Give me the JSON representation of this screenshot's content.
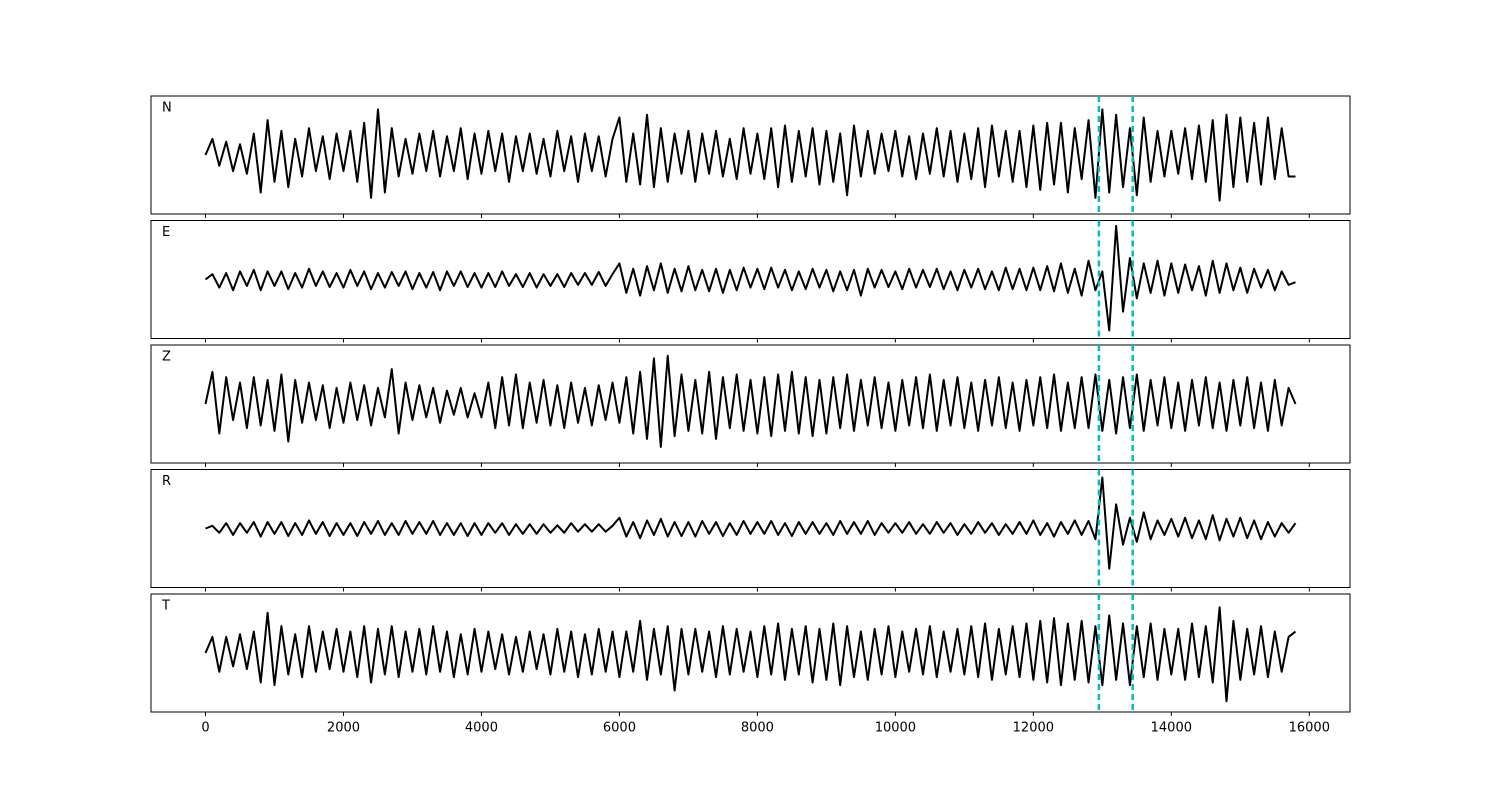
{
  "chart_data": {
    "type": "line",
    "x": [
      0,
      100,
      200,
      300,
      400,
      500,
      600,
      700,
      800,
      900,
      1000,
      1100,
      1200,
      1300,
      1400,
      1500,
      1600,
      1700,
      1800,
      1900,
      2000,
      2100,
      2200,
      2300,
      2400,
      2500,
      2600,
      2700,
      2800,
      2900,
      3000,
      3100,
      3200,
      3300,
      3400,
      3500,
      3600,
      3700,
      3800,
      3900,
      4000,
      4100,
      4200,
      4300,
      4400,
      4500,
      4600,
      4700,
      4800,
      4900,
      5000,
      5100,
      5200,
      5300,
      5400,
      5500,
      5600,
      5700,
      5800,
      5900,
      6000,
      6100,
      6200,
      6300,
      6400,
      6500,
      6600,
      6700,
      6800,
      6900,
      7000,
      7100,
      7200,
      7300,
      7400,
      7500,
      7600,
      7700,
      7800,
      7900,
      8000,
      8100,
      8200,
      8300,
      8400,
      8500,
      8600,
      8700,
      8800,
      8900,
      9000,
      9100,
      9200,
      9300,
      9400,
      9500,
      9600,
      9700,
      9800,
      9900,
      10000,
      10100,
      10200,
      10300,
      10400,
      10500,
      10600,
      10700,
      10800,
      10900,
      11000,
      11100,
      11200,
      11300,
      11400,
      11500,
      11600,
      11700,
      11800,
      11900,
      12000,
      12100,
      12200,
      12300,
      12400,
      12500,
      12600,
      12700,
      12800,
      12900,
      13000,
      13100,
      13200,
      13300,
      13400,
      13500,
      13600,
      13700,
      13800,
      13900,
      14000,
      14100,
      14200,
      14300,
      14400,
      14500,
      14600,
      14700,
      14800,
      14900,
      15000,
      15100,
      15200,
      15300,
      15400,
      15500,
      15600,
      15700,
      15800
    ],
    "series": [
      {
        "name": "N",
        "color": "#000000",
        "values": [
          0.0,
          0.3,
          -0.2,
          0.25,
          -0.3,
          0.2,
          -0.35,
          0.4,
          -0.7,
          0.65,
          -0.5,
          0.45,
          -0.6,
          0.3,
          -0.4,
          0.5,
          -0.3,
          0.35,
          -0.45,
          0.4,
          -0.3,
          0.45,
          -0.5,
          0.6,
          -0.8,
          0.85,
          -0.7,
          0.5,
          -0.4,
          0.3,
          -0.35,
          0.4,
          -0.3,
          0.45,
          -0.4,
          0.35,
          -0.3,
          0.5,
          -0.45,
          0.4,
          -0.35,
          0.45,
          -0.3,
          0.4,
          -0.5,
          0.35,
          -0.3,
          0.4,
          -0.35,
          0.3,
          -0.4,
          0.45,
          -0.3,
          0.35,
          -0.5,
          0.4,
          -0.3,
          0.35,
          -0.4,
          0.3,
          0.7,
          -0.5,
          0.4,
          -0.55,
          0.75,
          -0.6,
          0.5,
          -0.5,
          0.4,
          -0.35,
          0.45,
          -0.5,
          0.4,
          -0.35,
          0.45,
          -0.4,
          0.3,
          -0.45,
          0.5,
          -0.35,
          0.4,
          -0.45,
          0.5,
          -0.6,
          0.55,
          -0.5,
          0.45,
          -0.4,
          0.5,
          -0.55,
          0.45,
          -0.5,
          0.4,
          -0.75,
          0.55,
          -0.4,
          0.45,
          -0.35,
          0.4,
          -0.3,
          0.45,
          -0.4,
          0.35,
          -0.45,
          0.4,
          -0.35,
          0.5,
          -0.4,
          0.45,
          -0.5,
          0.4,
          -0.45,
          0.5,
          -0.6,
          0.55,
          -0.4,
          0.45,
          -0.5,
          0.45,
          -0.6,
          0.55,
          -0.65,
          0.6,
          -0.55,
          0.6,
          -0.7,
          0.5,
          -0.45,
          0.65,
          -0.8,
          0.85,
          -0.7,
          0.75,
          -0.6,
          0.5,
          -0.75,
          0.7,
          -0.5,
          0.45,
          -0.4,
          0.45,
          -0.35,
          0.5,
          -0.45,
          0.55,
          -0.5,
          0.65,
          -0.85,
          0.75,
          -0.6,
          0.7,
          -0.5,
          0.6,
          -0.55,
          0.7,
          -0.45,
          0.5,
          -0.4,
          -0.4
        ]
      },
      {
        "name": "E",
        "color": "#000000",
        "values": [
          0.0,
          0.1,
          -0.15,
          0.12,
          -0.2,
          0.15,
          -0.12,
          0.18,
          -0.2,
          0.15,
          -0.12,
          0.15,
          -0.18,
          0.12,
          -0.15,
          0.2,
          -0.12,
          0.15,
          -0.14,
          0.12,
          -0.15,
          0.18,
          -0.12,
          0.15,
          -0.18,
          0.12,
          -0.15,
          0.14,
          -0.12,
          0.15,
          -0.18,
          0.12,
          -0.15,
          0.14,
          -0.2,
          0.15,
          -0.12,
          0.15,
          -0.14,
          0.12,
          -0.15,
          0.12,
          -0.14,
          0.15,
          -0.12,
          0.1,
          -0.14,
          0.12,
          -0.15,
          0.1,
          -0.12,
          0.1,
          -0.14,
          0.12,
          -0.1,
          0.12,
          -0.1,
          0.14,
          -0.12,
          0.1,
          0.3,
          -0.25,
          0.2,
          -0.3,
          0.25,
          -0.2,
          0.3,
          -0.25,
          0.2,
          -0.22,
          0.25,
          -0.2,
          0.18,
          -0.22,
          0.2,
          -0.25,
          0.18,
          -0.2,
          0.22,
          -0.15,
          0.2,
          -0.18,
          0.22,
          -0.15,
          0.18,
          -0.2,
          0.15,
          -0.18,
          0.2,
          -0.15,
          0.18,
          -0.22,
          0.15,
          -0.2,
          0.18,
          -0.3,
          0.2,
          -0.15,
          0.18,
          -0.14,
          0.15,
          -0.18,
          0.2,
          -0.15,
          0.18,
          -0.14,
          0.2,
          -0.18,
          0.15,
          -0.2,
          0.18,
          -0.15,
          0.2,
          -0.18,
          0.15,
          -0.2,
          0.22,
          -0.18,
          0.2,
          -0.2,
          0.22,
          -0.2,
          0.25,
          -0.22,
          0.3,
          -0.25,
          0.2,
          -0.3,
          0.35,
          -0.2,
          0.15,
          -0.95,
          1.0,
          -0.6,
          0.4,
          -0.35,
          0.3,
          -0.25,
          0.35,
          -0.3,
          0.3,
          -0.25,
          0.28,
          -0.2,
          0.25,
          -0.3,
          0.35,
          -0.25,
          0.3,
          -0.2,
          0.22,
          -0.25,
          0.2,
          -0.15,
          0.18,
          -0.2,
          0.15,
          -0.1,
          -0.05
        ]
      },
      {
        "name": "Z",
        "color": "#000000",
        "values": [
          0.0,
          0.6,
          -0.55,
          0.5,
          -0.3,
          0.4,
          -0.45,
          0.5,
          -0.4,
          0.45,
          -0.5,
          0.55,
          -0.7,
          0.45,
          -0.35,
          0.4,
          -0.3,
          0.35,
          -0.45,
          0.3,
          -0.35,
          0.4,
          -0.3,
          0.35,
          -0.4,
          0.3,
          -0.25,
          0.65,
          -0.55,
          0.4,
          -0.3,
          0.35,
          -0.25,
          0.3,
          -0.35,
          0.25,
          -0.2,
          0.3,
          -0.25,
          0.2,
          -0.25,
          0.4,
          -0.45,
          0.5,
          -0.4,
          0.55,
          -0.45,
          0.4,
          -0.35,
          0.45,
          -0.4,
          0.35,
          -0.45,
          0.4,
          -0.35,
          0.3,
          -0.4,
          0.35,
          -0.3,
          0.4,
          -0.35,
          0.5,
          -0.55,
          0.6,
          -0.65,
          0.85,
          -0.8,
          0.9,
          -0.6,
          0.55,
          -0.5,
          0.45,
          -0.55,
          0.6,
          -0.65,
          0.5,
          -0.45,
          0.55,
          -0.5,
          0.45,
          -0.55,
          0.5,
          -0.6,
          0.55,
          -0.5,
          0.6,
          -0.55,
          0.5,
          -0.6,
          0.45,
          -0.55,
          0.5,
          -0.45,
          0.55,
          -0.5,
          0.45,
          -0.4,
          0.5,
          -0.45,
          0.4,
          -0.5,
          0.45,
          -0.4,
          0.5,
          -0.45,
          0.55,
          -0.5,
          0.45,
          -0.4,
          0.5,
          -0.45,
          0.4,
          -0.5,
          0.45,
          -0.4,
          0.5,
          -0.45,
          0.4,
          -0.5,
          0.45,
          -0.4,
          0.5,
          -0.45,
          0.55,
          -0.5,
          0.4,
          -0.45,
          0.5,
          -0.45,
          0.55,
          -0.5,
          0.45,
          -0.55,
          0.5,
          -0.45,
          0.55,
          -0.5,
          0.45,
          -0.4,
          0.5,
          -0.45,
          0.4,
          -0.5,
          0.45,
          -0.4,
          0.5,
          -0.45,
          0.4,
          -0.5,
          0.45,
          -0.4,
          0.5,
          -0.45,
          0.4,
          -0.5,
          0.45,
          -0.4,
          0.3,
          0.0
        ]
      },
      {
        "name": "R",
        "color": "#000000",
        "values": [
          0.0,
          0.05,
          -0.08,
          0.1,
          -0.12,
          0.1,
          -0.08,
          0.12,
          -0.15,
          0.12,
          -0.1,
          0.12,
          -0.14,
          0.1,
          -0.12,
          0.15,
          -0.1,
          0.12,
          -0.14,
          0.1,
          -0.12,
          0.1,
          -0.14,
          0.12,
          -0.1,
          0.14,
          -0.12,
          0.1,
          -0.12,
          0.14,
          -0.1,
          0.12,
          -0.1,
          0.14,
          -0.12,
          0.1,
          -0.12,
          0.1,
          -0.14,
          0.1,
          -0.12,
          0.1,
          -0.08,
          0.1,
          -0.12,
          0.08,
          -0.1,
          0.08,
          -0.1,
          0.08,
          -0.08,
          0.06,
          -0.08,
          0.1,
          -0.06,
          0.08,
          -0.06,
          0.08,
          -0.06,
          0.05,
          0.2,
          -0.15,
          0.12,
          -0.18,
          0.15,
          -0.12,
          0.18,
          -0.15,
          0.12,
          -0.14,
          0.12,
          -0.15,
          0.14,
          -0.1,
          0.12,
          -0.14,
          0.1,
          -0.12,
          0.14,
          -0.1,
          0.12,
          -0.1,
          0.14,
          -0.12,
          0.1,
          -0.14,
          0.12,
          -0.1,
          0.12,
          -0.1,
          0.1,
          -0.12,
          0.14,
          -0.1,
          0.12,
          -0.1,
          0.14,
          -0.12,
          0.1,
          -0.08,
          0.1,
          -0.08,
          0.12,
          -0.1,
          0.08,
          -0.1,
          0.12,
          -0.08,
          0.1,
          -0.12,
          0.08,
          -0.1,
          0.12,
          -0.08,
          0.1,
          -0.12,
          0.08,
          -0.1,
          0.12,
          -0.1,
          0.15,
          -0.12,
          0.1,
          -0.15,
          0.12,
          -0.1,
          0.15,
          -0.12,
          0.14,
          -0.2,
          0.95,
          -0.75,
          0.45,
          -0.3,
          0.2,
          -0.25,
          0.3,
          -0.2,
          0.15,
          -0.12,
          0.18,
          -0.15,
          0.2,
          -0.18,
          0.15,
          -0.2,
          0.25,
          -0.22,
          0.18,
          -0.15,
          0.2,
          -0.18,
          0.15,
          -0.2,
          0.12,
          -0.15,
          0.1,
          -0.08,
          0.1
        ]
      },
      {
        "name": "T",
        "color": "#000000",
        "values": [
          0.0,
          0.3,
          -0.35,
          0.3,
          -0.25,
          0.35,
          -0.3,
          0.4,
          -0.55,
          0.75,
          -0.6,
          0.5,
          -0.4,
          0.35,
          -0.45,
          0.5,
          -0.35,
          0.4,
          -0.3,
          0.45,
          -0.35,
          0.4,
          -0.45,
          0.5,
          -0.55,
          0.45,
          -0.4,
          0.5,
          -0.45,
          0.4,
          -0.35,
          0.45,
          -0.4,
          0.5,
          -0.35,
          0.4,
          -0.45,
          0.35,
          -0.4,
          0.45,
          -0.35,
          0.4,
          -0.3,
          0.35,
          -0.4,
          0.3,
          -0.35,
          0.4,
          -0.3,
          0.35,
          -0.4,
          0.45,
          -0.35,
          0.4,
          -0.45,
          0.35,
          -0.4,
          0.45,
          -0.35,
          0.4,
          -0.45,
          0.4,
          -0.35,
          0.6,
          -0.5,
          0.45,
          -0.4,
          0.5,
          -0.7,
          0.45,
          -0.4,
          0.45,
          -0.35,
          0.4,
          -0.45,
          0.5,
          -0.4,
          0.45,
          -0.35,
          0.4,
          -0.45,
          0.5,
          -0.4,
          0.55,
          -0.5,
          0.45,
          -0.4,
          0.5,
          -0.55,
          0.45,
          -0.5,
          0.55,
          -0.6,
          0.5,
          -0.45,
          0.4,
          -0.5,
          0.45,
          -0.4,
          0.5,
          -0.45,
          0.4,
          -0.35,
          0.45,
          -0.4,
          0.5,
          -0.45,
          0.4,
          -0.35,
          0.45,
          -0.4,
          0.5,
          -0.45,
          0.55,
          -0.5,
          0.45,
          -0.4,
          0.5,
          -0.45,
          0.55,
          -0.5,
          0.6,
          -0.55,
          0.65,
          -0.6,
          0.55,
          -0.5,
          0.6,
          -0.55,
          0.5,
          -0.6,
          0.7,
          -0.5,
          0.55,
          -0.6,
          0.5,
          -0.45,
          0.55,
          -0.5,
          0.45,
          -0.4,
          0.45,
          -0.5,
          0.55,
          -0.45,
          0.5,
          -0.55,
          0.85,
          -0.9,
          0.6,
          -0.5,
          0.45,
          -0.4,
          0.5,
          -0.45,
          0.4,
          -0.35,
          0.3,
          0.4
        ]
      }
    ],
    "xlim": [
      -790,
      16590
    ],
    "xticks": [
      0,
      2000,
      4000,
      6000,
      8000,
      10000,
      12000,
      14000,
      16000
    ],
    "ylim": [
      -1.1,
      1.1
    ],
    "vlines": [
      12950,
      13440
    ],
    "vline_color": "#00bfbf"
  }
}
